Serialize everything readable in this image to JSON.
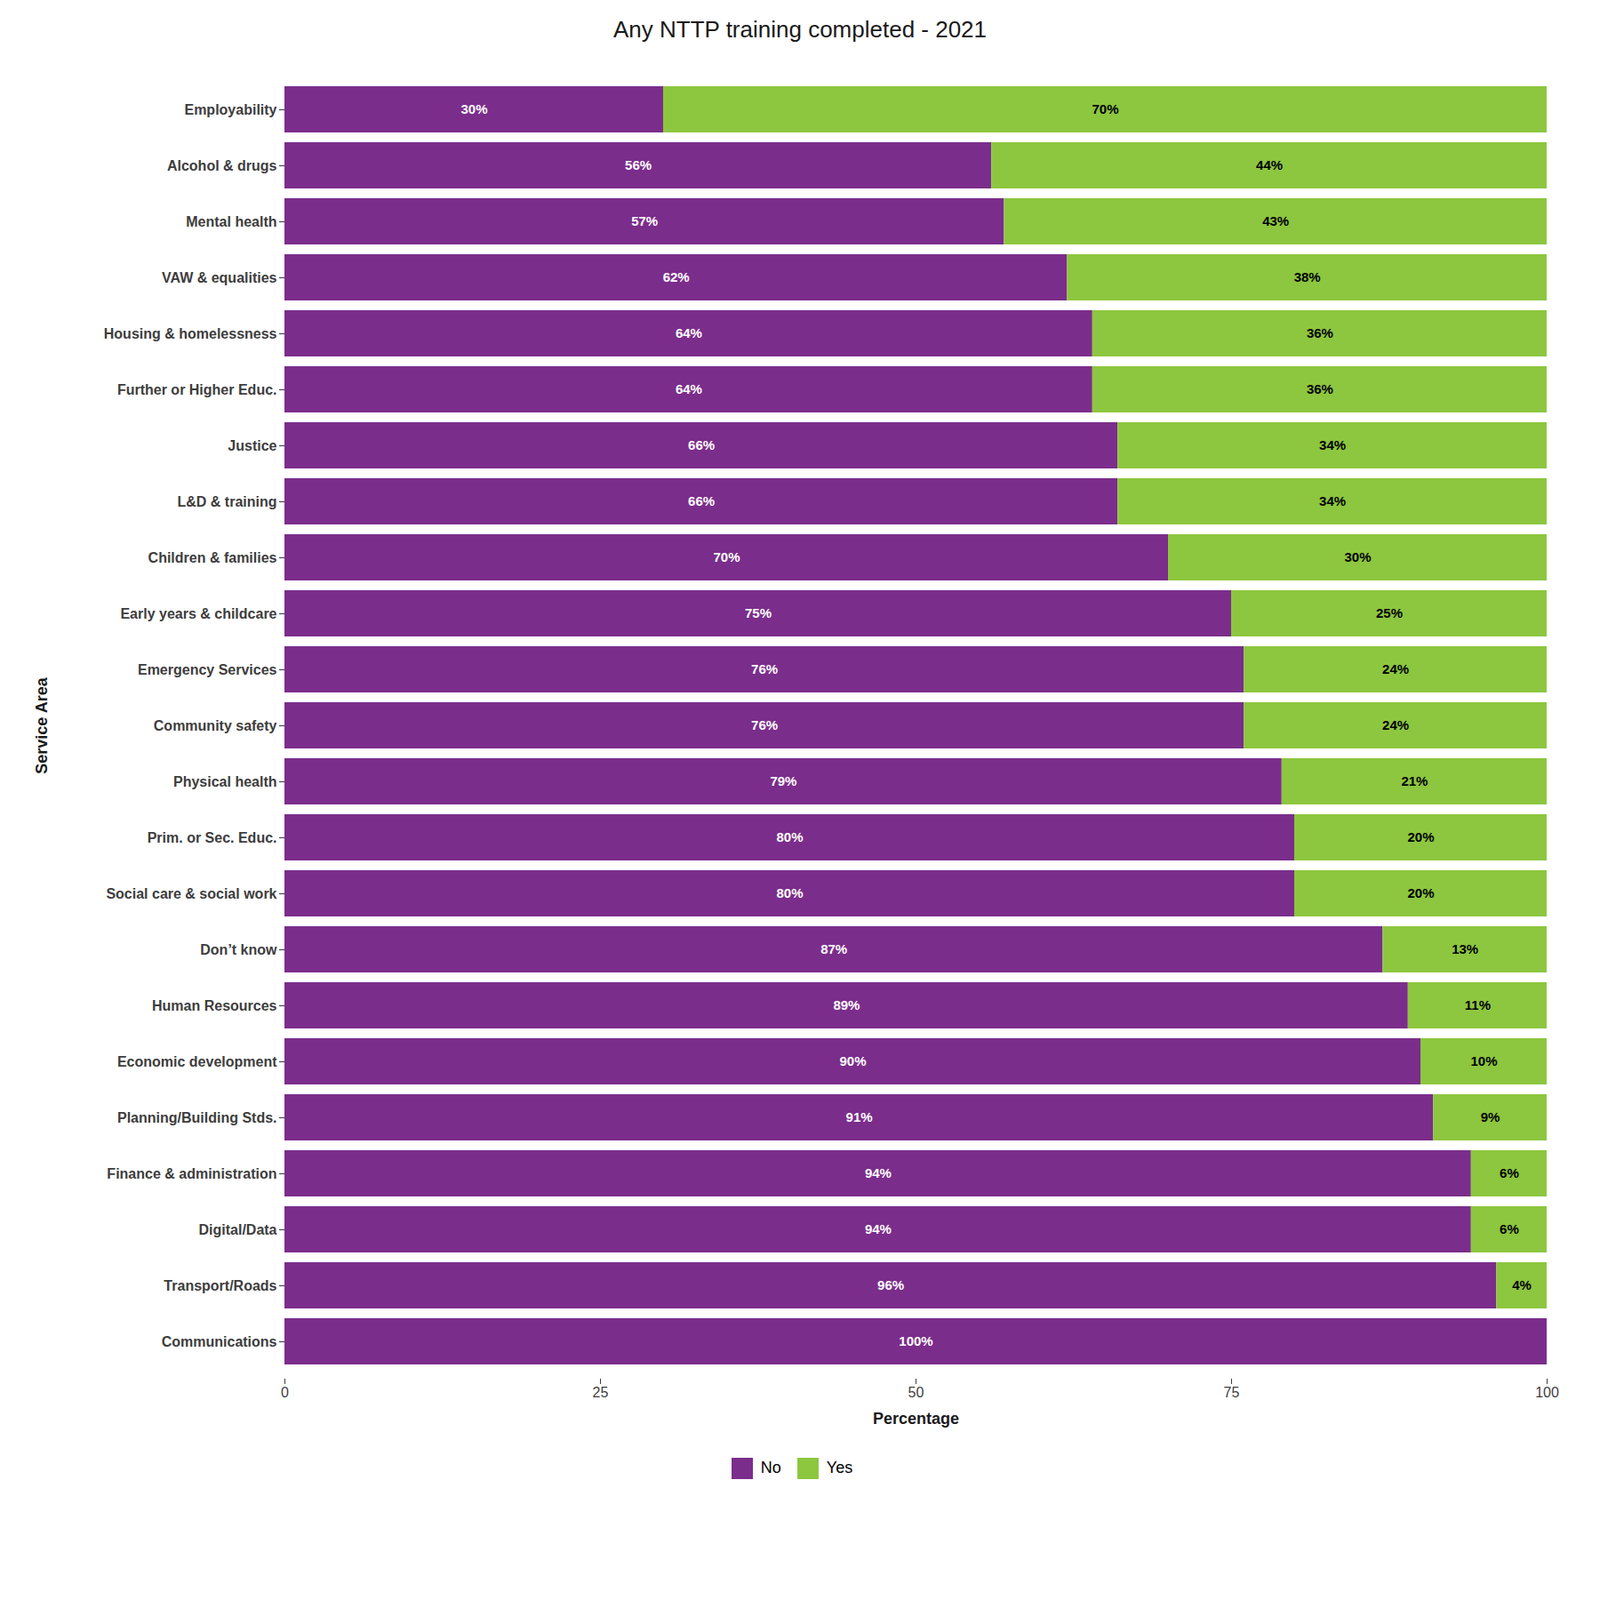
{
  "chart_data": {
    "type": "bar",
    "orientation": "horizontal",
    "stacked": true,
    "title": "Any NTTP training completed - 2021",
    "xlabel": "Percentage",
    "ylabel": "Service Area",
    "categories": [
      "Employability",
      "Alcohol & drugs",
      "Mental health",
      "VAW & equalities",
      "Housing & homelessness",
      "Further or Higher Educ.",
      "Justice",
      "L&D & training",
      "Children & families",
      "Early years & childcare",
      "Emergency Services",
      "Community safety",
      "Physical health",
      "Prim. or Sec. Educ.",
      "Social care & social work",
      "Don’t know",
      "Human Resources",
      "Economic development",
      "Planning/Building Stds.",
      "Finance & administration",
      "Digital/Data",
      "Transport/Roads",
      "Communications"
    ],
    "series": [
      {
        "name": "No",
        "color": "#7B2D8B",
        "values": [
          30,
          56,
          57,
          62,
          64,
          64,
          66,
          66,
          70,
          75,
          76,
          76,
          79,
          80,
          80,
          87,
          89,
          90,
          91,
          94,
          94,
          96,
          100
        ],
        "value_labels": [
          "30%",
          "56%",
          "57%",
          "62%",
          "64%",
          "64%",
          "66%",
          "66%",
          "70%",
          "75%",
          "76%",
          "76%",
          "79%",
          "80%",
          "80%",
          "87%",
          "89%",
          "90%",
          "91%",
          "94%",
          "94%",
          "96%",
          "100%"
        ]
      },
      {
        "name": "Yes",
        "color": "#8DC63F",
        "values": [
          70,
          44,
          43,
          38,
          36,
          36,
          34,
          34,
          30,
          25,
          24,
          24,
          21,
          20,
          20,
          13,
          11,
          10,
          9,
          6,
          6,
          4,
          0
        ],
        "value_labels": [
          "70%",
          "44%",
          "43%",
          "38%",
          "36%",
          "36%",
          "34%",
          "34%",
          "30%",
          "25%",
          "24%",
          "24%",
          "21%",
          "20%",
          "20%",
          "13%",
          "11%",
          "10%",
          "9%",
          "6%",
          "6%",
          "4%",
          null
        ]
      }
    ],
    "xlim": [
      0,
      100
    ],
    "xticks": [
      0,
      25,
      50,
      75,
      100
    ],
    "data_labels": true,
    "legend": "bottom",
    "grid": false
  }
}
